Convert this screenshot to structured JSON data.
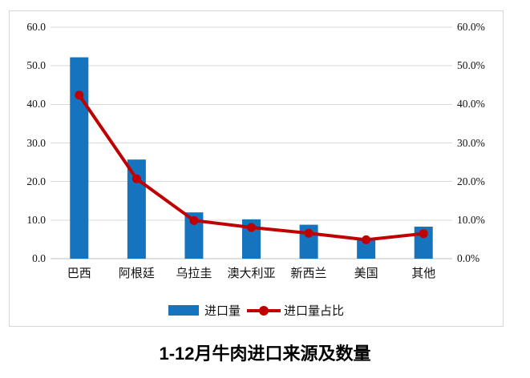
{
  "title": "1-12月牛肉进口来源及数量",
  "colors": {
    "bar": "#1673be",
    "line": "#c00000",
    "gridline": "#d9d9d9",
    "axis_line": "#bfbfbf",
    "panel_border": "#d6d6d6",
    "text": "#111111"
  },
  "legend": {
    "bar_label": "进口量",
    "line_label": "进口量占比"
  },
  "chart_data": {
    "type": "bar",
    "subtype": "combo bar + line, dual axis",
    "title": "1-12月牛肉进口来源及数量",
    "categories": [
      "巴西",
      "阿根廷",
      "乌拉圭",
      "澳大利亚",
      "新西兰",
      "美国",
      "其他"
    ],
    "series": [
      {
        "name": "进口量",
        "type": "bar",
        "axis": "left",
        "color": "#1673be",
        "values": [
          52.2,
          25.7,
          12.0,
          10.2,
          8.8,
          5.2,
          8.3
        ]
      },
      {
        "name": "进口量占比",
        "type": "line",
        "axis": "right",
        "color": "#c00000",
        "unit": "%",
        "values": [
          42.4,
          20.7,
          9.9,
          8.1,
          6.6,
          4.9,
          6.5
        ]
      }
    ],
    "left_axis": {
      "min": 0,
      "max": 60,
      "step": 10,
      "tick_labels": [
        "0.0",
        "10.0",
        "20.0",
        "30.0",
        "40.0",
        "50.0",
        "60.0"
      ]
    },
    "right_axis": {
      "min": 0,
      "max": 60,
      "step": 10,
      "tick_labels": [
        "0.0%",
        "10.0%",
        "20.0%",
        "30.0%",
        "40.0%",
        "50.0%",
        "60.0%"
      ]
    },
    "grid": true,
    "legend_position": "bottom"
  }
}
